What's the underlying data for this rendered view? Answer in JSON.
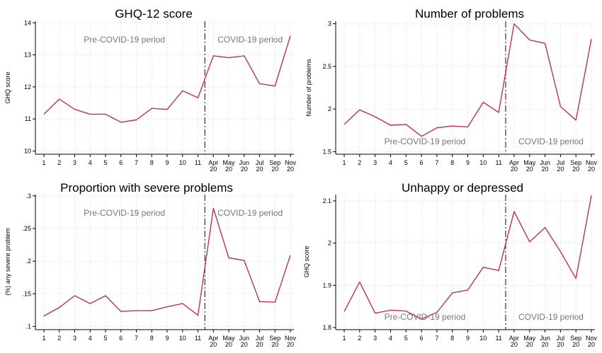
{
  "colors": {
    "series": "#c0324f",
    "period_text": "#777777"
  },
  "x_categories": [
    "1",
    "2",
    "3",
    "4",
    "5",
    "6",
    "7",
    "8",
    "9",
    "10",
    "11",
    "Apr 20",
    "May 20",
    "Jun 20",
    "Jul 20",
    "Sep 20",
    "Nov 20"
  ],
  "chart_data": [
    {
      "type": "line",
      "title": "GHQ-12 score",
      "ylabel": "GHQ score",
      "categories": [
        "1",
        "2",
        "3",
        "4",
        "5",
        "6",
        "7",
        "8",
        "9",
        "10",
        "11",
        "Apr 20",
        "May 20",
        "Jun 20",
        "Jul 20",
        "Sep 20",
        "Nov 20"
      ],
      "values": [
        11.15,
        11.62,
        11.3,
        11.15,
        11.15,
        10.9,
        10.97,
        11.33,
        11.3,
        11.88,
        11.66,
        12.97,
        12.91,
        12.97,
        12.1,
        12.03,
        13.6
      ],
      "ylim": [
        9.9,
        14.05
      ],
      "yticks": [
        10,
        11,
        12,
        13,
        14
      ],
      "ytick_labels": [
        "10",
        "11",
        "12",
        "13",
        "14"
      ],
      "grid": true,
      "covid_line_after_index": 10,
      "pre_label": "Pre-COVID-19 period",
      "covid_label": "COVID-19 period",
      "labels_position": "top"
    },
    {
      "type": "line",
      "title": "Number of problems",
      "ylabel": "Number of problems",
      "categories": [
        "1",
        "2",
        "3",
        "4",
        "5",
        "6",
        "7",
        "8",
        "9",
        "10",
        "11",
        "Apr 20",
        "May 20",
        "Jun 20",
        "Jul 20",
        "Sep 20",
        "Nov 20"
      ],
      "values": [
        1.82,
        1.99,
        1.91,
        1.81,
        1.82,
        1.68,
        1.78,
        1.8,
        1.79,
        2.08,
        1.96,
        3.0,
        2.81,
        2.77,
        2.03,
        1.87,
        2.82
      ],
      "ylim": [
        1.47,
        3.03
      ],
      "yticks": [
        1.5,
        2,
        2.5,
        3
      ],
      "ytick_labels": [
        "1.5",
        "2",
        "2.5",
        "3"
      ],
      "grid": true,
      "covid_line_after_index": 10,
      "pre_label": "Pre-COVID-19 period",
      "covid_label": "COVID-19 period",
      "labels_position": "bottom"
    },
    {
      "type": "line",
      "title": "Proportion with severe problems",
      "ylabel": "(%) any severe problem",
      "categories": [
        "1",
        "2",
        "3",
        "4",
        "5",
        "6",
        "7",
        "8",
        "9",
        "10",
        "11",
        "Apr 20",
        "May 20",
        "Jun 20",
        "Jul 20",
        "Sep 20",
        "Nov 20"
      ],
      "values": [
        0.116,
        0.129,
        0.147,
        0.135,
        0.147,
        0.123,
        0.124,
        0.124,
        0.13,
        0.135,
        0.117,
        0.281,
        0.205,
        0.201,
        0.138,
        0.137,
        0.209
      ],
      "ylim": [
        0.095,
        0.302
      ],
      "yticks": [
        0.1,
        0.15,
        0.2,
        0.25,
        0.3
      ],
      "ytick_labels": [
        ".1",
        ".15",
        ".2",
        ".25",
        ".3"
      ],
      "grid": true,
      "covid_line_after_index": 10,
      "pre_label": "Pre-COVID-19 period",
      "covid_label": "COVID-19 period",
      "labels_position": "top"
    },
    {
      "type": "line",
      "title": "Unhappy or depressed",
      "ylabel": "GHQ score",
      "categories": [
        "1",
        "2",
        "3",
        "4",
        "5",
        "6",
        "7",
        "8",
        "9",
        "10",
        "11",
        "Apr 20",
        "May 20",
        "Jun 20",
        "Jul 20",
        "Sep 20",
        "Nov 20"
      ],
      "values": [
        1.838,
        1.908,
        1.834,
        1.841,
        1.839,
        1.82,
        1.836,
        1.882,
        1.889,
        1.943,
        1.935,
        2.075,
        2.003,
        2.037,
        1.98,
        1.916,
        2.113
      ],
      "ylim": [
        1.795,
        2.115
      ],
      "yticks": [
        1.8,
        1.9,
        2,
        2.1
      ],
      "ytick_labels": [
        "1.8",
        "1.9",
        "2",
        "2.1"
      ],
      "grid": true,
      "covid_line_after_index": 10,
      "pre_label": "Pre-COVID-19 period",
      "covid_label": "COVID-19 period",
      "labels_position": "bottom"
    }
  ]
}
